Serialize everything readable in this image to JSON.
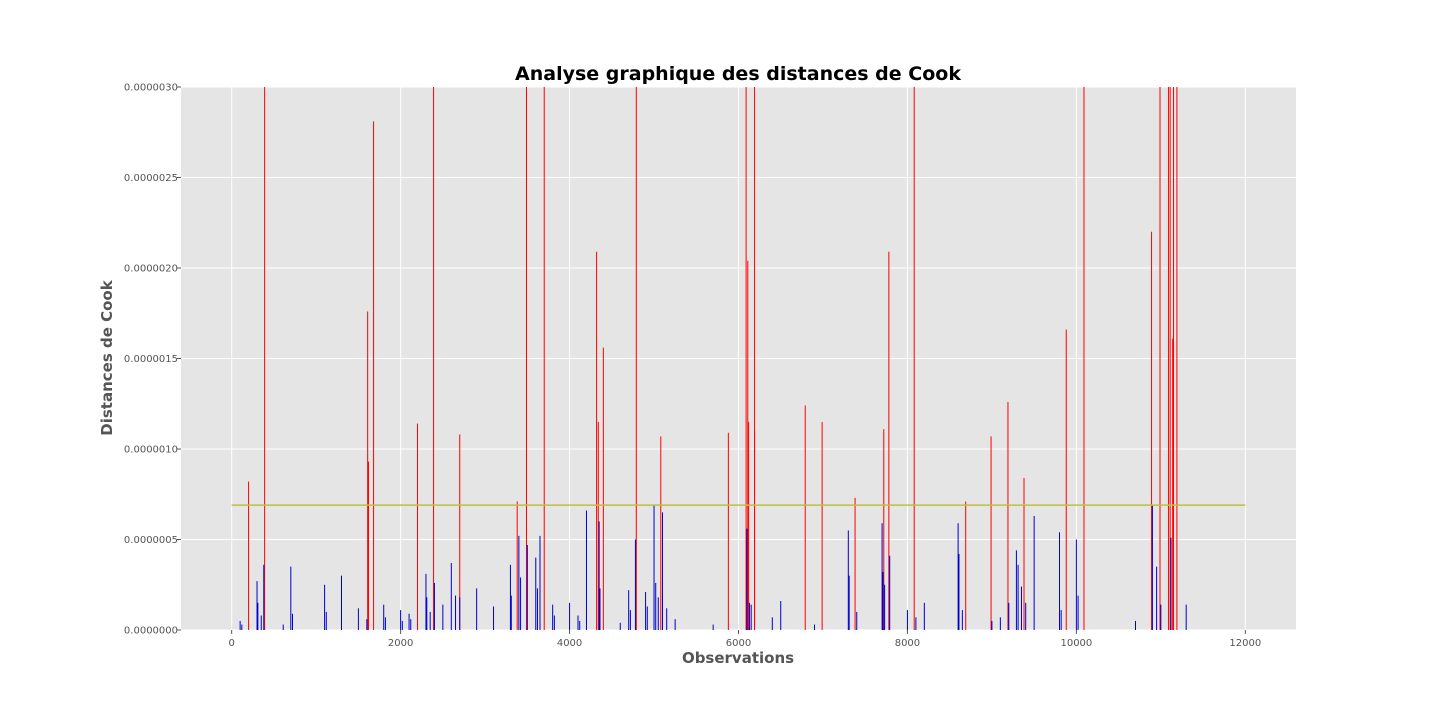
{
  "chart_data": {
    "type": "bar",
    "title": "Analyse graphique des distances de Cook",
    "xlabel": "Observations",
    "ylabel": "Distances de Cook",
    "xlim": [
      -600,
      12600
    ],
    "ylim": [
      0,
      3e-06
    ],
    "xticks": [
      0,
      2000,
      4000,
      6000,
      8000,
      10000,
      12000
    ],
    "xtick_labels": [
      "0",
      "2000",
      "4000",
      "6000",
      "8000",
      "10000",
      "12000"
    ],
    "yticks": [
      0,
      5e-07,
      1e-06,
      1.5e-06,
      2e-06,
      2.5e-06,
      3e-06
    ],
    "ytick_labels": [
      "0.0000000",
      "0.0000005",
      "0.0000010",
      "0.0000015",
      "0.0000020",
      "0.0000025",
      "0.0000030"
    ],
    "grid": true,
    "threshold": {
      "value": 6.9e-07,
      "x_start": 0,
      "x_end": 12000,
      "color": "#bfbf3f"
    },
    "colors": {
      "above_threshold": "#ff0000",
      "below_threshold": "#0000cc",
      "background": "#e5e5e5",
      "grid": "#ffffff"
    },
    "series": [
      {
        "color": "#ff0000",
        "x": [
          200,
          390,
          1610,
          1620,
          1680,
          2200,
          2390,
          2700,
          3380,
          3490,
          3700,
          4320,
          4340,
          4400,
          4790,
          5080,
          5880,
          6090,
          6110,
          6120,
          6190,
          6190,
          6790,
          6990,
          7380,
          7720,
          7780,
          8080,
          8690,
          8990,
          9190,
          9380,
          9880,
          10090,
          10890,
          10990,
          11090,
          11110,
          11140,
          11150,
          11190
        ],
        "values": [
          8.2e-07,
          3e-06,
          1.76e-06,
          9.3e-07,
          2.81e-06,
          1.14e-06,
          3e-06,
          1.08e-06,
          7.1e-07,
          3e-06,
          3e-06,
          2.09e-06,
          1.15e-06,
          1.56e-06,
          3e-06,
          1.07e-06,
          1.09e-06,
          3e-06,
          2.04e-06,
          1.15e-06,
          3e-06,
          1.1e-06,
          1.24e-06,
          1.15e-06,
          7.3e-07,
          1.11e-06,
          2.09e-06,
          3e-06,
          7.1e-07,
          1.07e-06,
          1.26e-06,
          8.4e-07,
          1.66e-06,
          3e-06,
          2.2e-06,
          3e-06,
          3e-06,
          3e-06,
          1.61e-06,
          3e-06,
          3e-06
        ]
      },
      {
        "color": "#0000cc",
        "x": [
          100,
          120,
          300,
          310,
          350,
          380,
          610,
          700,
          720,
          1100,
          1120,
          1300,
          1500,
          1600,
          1800,
          1820,
          2000,
          2020,
          2100,
          2120,
          2300,
          2310,
          2350,
          2400,
          2500,
          2600,
          2650,
          2700,
          2900,
          3100,
          3300,
          3310,
          3400,
          3420,
          3500,
          3600,
          3620,
          3650,
          3800,
          3820,
          4000,
          4100,
          4120,
          4200,
          4350,
          4360,
          4600,
          4700,
          4720,
          4780,
          4900,
          4920,
          5000,
          5020,
          5050,
          5100,
          5150,
          5250,
          5700,
          6100,
          6130,
          6150,
          6400,
          6500,
          6900,
          7300,
          7310,
          7400,
          7700,
          7710,
          7730,
          7790,
          8000,
          8100,
          8200,
          8600,
          8610,
          8650,
          9000,
          9100,
          9200,
          9290,
          9310,
          9350,
          9400,
          9500,
          9800,
          9820,
          10000,
          10020,
          10700,
          10900,
          10950,
          11000,
          11120,
          11300
        ],
        "values": [
          5e-08,
          3e-08,
          2.7e-07,
          1.5e-07,
          8e-08,
          3.6e-07,
          3e-08,
          3.5e-07,
          9e-08,
          2.5e-07,
          1e-07,
          3e-07,
          1.2e-07,
          6e-08,
          1.4e-07,
          7e-08,
          1.1e-07,
          5e-08,
          9e-08,
          6e-08,
          3.1e-07,
          1.8e-07,
          1e-07,
          2.6e-07,
          1.4e-07,
          3.7e-07,
          1.9e-07,
          1.8e-07,
          2.3e-07,
          1.3e-07,
          3.6e-07,
          1.9e-07,
          5.2e-07,
          2.9e-07,
          4.7e-07,
          4e-07,
          2.3e-07,
          5.2e-07,
          1.4e-07,
          8e-08,
          1.5e-07,
          8e-08,
          5e-08,
          6.6e-07,
          6e-07,
          2.3e-07,
          4e-08,
          2.2e-07,
          1.1e-07,
          5e-07,
          2.1e-07,
          1.3e-07,
          6.9e-07,
          2.6e-07,
          1.8e-07,
          6.5e-07,
          1.2e-07,
          6e-08,
          3e-08,
          5.6e-07,
          1.5e-07,
          1.4e-07,
          7e-08,
          1.6e-07,
          3e-08,
          5.5e-07,
          3e-07,
          1e-07,
          5.9e-07,
          3.2e-07,
          2.5e-07,
          4.1e-07,
          1.1e-07,
          7e-08,
          1.5e-07,
          5.9e-07,
          4.2e-07,
          1.1e-07,
          5e-08,
          7e-08,
          1.5e-07,
          4.4e-07,
          3.6e-07,
          2.4e-07,
          1.5e-07,
          6.3e-07,
          5.4e-07,
          1.1e-07,
          5e-07,
          1.9e-07,
          5e-08,
          6.9e-07,
          3.5e-07,
          1.4e-07,
          5.1e-07,
          1.4e-07
        ]
      }
    ]
  }
}
